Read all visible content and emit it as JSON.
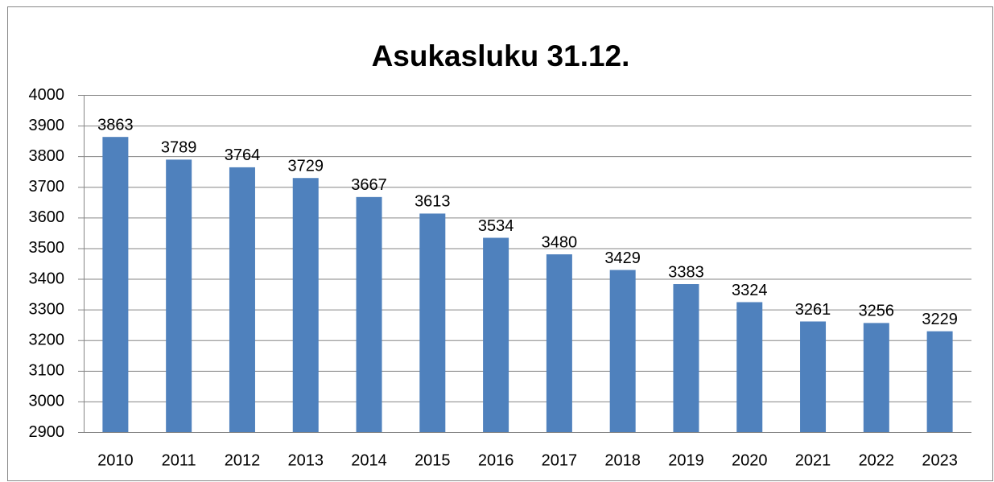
{
  "chart_data": {
    "type": "bar",
    "title": "Asukasluku 31.12.",
    "categories": [
      "2010",
      "2011",
      "2012",
      "2013",
      "2014",
      "2015",
      "2016",
      "2017",
      "2018",
      "2019",
      "2020",
      "2021",
      "2022",
      "2023"
    ],
    "values": [
      3863,
      3789,
      3764,
      3729,
      3667,
      3613,
      3534,
      3480,
      3429,
      3383,
      3324,
      3261,
      3256,
      3229
    ],
    "color": "#4f81bd",
    "ylim": [
      2900,
      4000
    ],
    "yticks": [
      2900,
      3000,
      3100,
      3200,
      3300,
      3400,
      3500,
      3600,
      3700,
      3800,
      3900,
      4000
    ],
    "grid": true
  }
}
